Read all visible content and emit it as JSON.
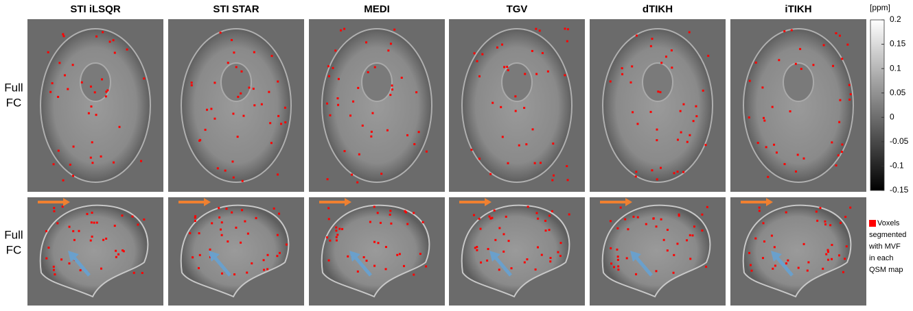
{
  "columns": [
    "STI iLSQR",
    "STI STAR",
    "MEDI",
    "TGV",
    "dTIKH",
    "iTIKH"
  ],
  "rows": [
    [
      "Full",
      "FC"
    ],
    [
      "Full",
      "FC"
    ]
  ],
  "colorbar": {
    "unit": "[ppm]",
    "lim": [
      -0.15,
      0.2
    ],
    "ticks": [
      0.2,
      0.15,
      0.1,
      0.05,
      0,
      -0.05,
      -0.1,
      -0.15
    ]
  },
  "legend": {
    "lines": [
      "Voxels",
      "segmented",
      "with MVF",
      "in each",
      "QSM map"
    ],
    "color": "#ff0000"
  }
}
